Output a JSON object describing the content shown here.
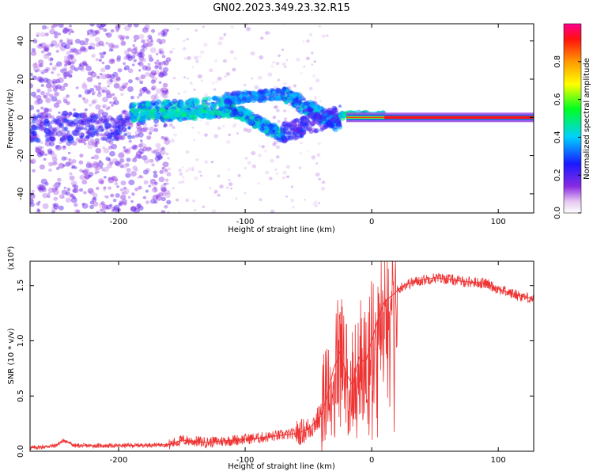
{
  "figure": {
    "title": "GN02.2023.349.23.32.R15"
  },
  "chart_data": [
    {
      "type": "heatmap",
      "xlabel": "Height of straight line (km)",
      "ylabel": "Frequency (Hz)",
      "xlim": [
        -270,
        128
      ],
      "ylim": [
        -50,
        49
      ],
      "xticks": [
        -200,
        -100,
        0,
        100
      ],
      "yticks": [
        -40,
        -20,
        0,
        20,
        40
      ],
      "colorbar": {
        "label": "Normalized spectral amplitude",
        "range": [
          0,
          1
        ],
        "ticks": [
          "0.0",
          "0.2",
          "0.4",
          "0.6",
          "0.8"
        ],
        "colormap": "rainbow (white to violet, blue, cyan, green, yellow, orange, red)"
      },
      "features": [
        {
          "x_range": [
            -270,
            -165
          ],
          "frequency_spread_hz": [
            -50,
            49
          ],
          "amplitude": "low, scattered speckle"
        },
        {
          "x_range": [
            -190,
            -110
          ],
          "frequency_center_hz": [
            0,
            10
          ],
          "amplitude": "medium-high (cyan/green)"
        },
        {
          "x_range": [
            -110,
            -65
          ],
          "frequency_center_hz": [
            -8,
            12
          ],
          "amplitude": "medium-high, two diverging branches"
        },
        {
          "x_range": [
            -65,
            -20
          ],
          "frequency_center_hz": [
            -15,
            15
          ],
          "amplitude": "medium, scattered high"
        },
        {
          "x_range": [
            -20,
            10
          ],
          "frequency_center_hz": [
            0,
            0
          ],
          "amplitude": "high (green/yellow)"
        },
        {
          "x_range": [
            10,
            128
          ],
          "frequency_center_hz": [
            0,
            0
          ],
          "amplitude": "maximum (red) narrow line"
        }
      ]
    },
    {
      "type": "line",
      "xlabel": "Height of straight line (km)",
      "ylabel": "SNR (10 * v/v)",
      "y_multiplier": "(x10⁴)",
      "xlim": [
        -270,
        128
      ],
      "ylim": [
        0,
        1.72
      ],
      "xticks": [
        -200,
        -100,
        0,
        100
      ],
      "yticks": [
        "0.0",
        "0.5",
        "1.0",
        "1.5"
      ],
      "color": "#ee3333",
      "series": [
        {
          "x": [
            -270,
            -250,
            -243,
            -235,
            -200,
            -160,
            -150,
            -130,
            -110,
            -90,
            -75,
            -60,
            -50,
            -40,
            -35,
            -30,
            -25,
            -20,
            -15,
            -10,
            -5,
            0,
            5,
            10,
            15,
            20,
            25,
            30,
            40,
            50,
            60,
            70,
            80,
            90,
            100,
            110,
            120,
            128
          ],
          "y": [
            0.03,
            0.05,
            0.1,
            0.05,
            0.05,
            0.06,
            0.1,
            0.08,
            0.1,
            0.12,
            0.14,
            0.16,
            0.2,
            0.32,
            0.5,
            0.75,
            0.9,
            0.7,
            0.6,
            0.85,
            0.8,
            1.0,
            1.2,
            1.35,
            1.4,
            1.45,
            1.5,
            1.52,
            1.55,
            1.57,
            1.56,
            1.54,
            1.53,
            1.52,
            1.47,
            1.43,
            1.4,
            1.38
          ]
        }
      ]
    }
  ]
}
